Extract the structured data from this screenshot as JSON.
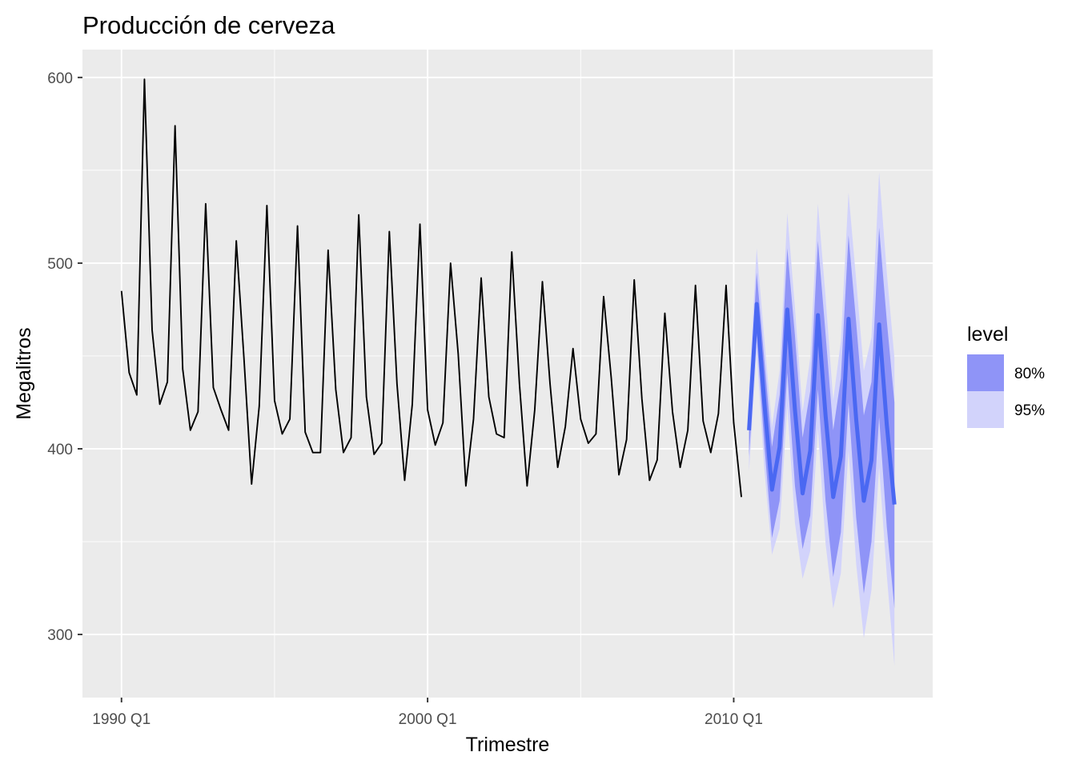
{
  "chart_data": {
    "type": "line",
    "title": "Producción de cerveza",
    "xlabel": "Trimestre",
    "ylabel": "Megalitros",
    "xlim": [
      1988.725,
      2016.5
    ],
    "ylim": [
      266,
      615
    ],
    "grid": true,
    "x_ticks": [
      {
        "value": 1990.0,
        "label": "1990 Q1"
      },
      {
        "value": 2000.0,
        "label": "2000 Q1"
      },
      {
        "value": 2010.0,
        "label": "2010 Q1"
      }
    ],
    "y_ticks": [
      {
        "value": 300,
        "label": "300"
      },
      {
        "value": 400,
        "label": "400"
      },
      {
        "value": 500,
        "label": "500"
      },
      {
        "value": 600,
        "label": "600"
      }
    ],
    "history": {
      "start": "1990 Q1",
      "end": "2010 Q2",
      "values": [
        485,
        441,
        429,
        599,
        464,
        424,
        436,
        574,
        443,
        410,
        420,
        532,
        433,
        421,
        410,
        512,
        449,
        381,
        423,
        531,
        426,
        408,
        416,
        520,
        409,
        398,
        398,
        507,
        432,
        398,
        406,
        526,
        428,
        397,
        403,
        517,
        435,
        383,
        424,
        521,
        421,
        402,
        414,
        500,
        451,
        380,
        416,
        492,
        428,
        408,
        406,
        506,
        435,
        380,
        421,
        490,
        435,
        390,
        412,
        454,
        416,
        403,
        408,
        482,
        438,
        386,
        405,
        491,
        427,
        383,
        394,
        473,
        420,
        390,
        410,
        488,
        415,
        398,
        419,
        488,
        414,
        374
      ]
    },
    "forecast": {
      "start": "2010 Q3",
      "end": "2015 Q2",
      "mean": [
        410,
        478,
        425,
        378,
        401,
        475,
        421,
        376,
        399,
        472,
        418,
        374,
        396,
        470,
        416,
        372,
        394,
        467,
        413,
        370
      ],
      "lo80": [
        396,
        461,
        402,
        352,
        372,
        441,
        380,
        346,
        364,
        432,
        372,
        331,
        355,
        425,
        363,
        322,
        350,
        417,
        358,
        314
      ],
      "hi80": [
        425,
        495,
        448,
        401,
        429,
        508,
        461,
        406,
        431,
        512,
        462,
        410,
        438,
        515,
        468,
        418,
        436,
        519,
        469,
        425
      ],
      "lo95": [
        388,
        452,
        389,
        343,
        357,
        423,
        360,
        330,
        345,
        411,
        349,
        314,
        333,
        399,
        338,
        298,
        324,
        390,
        332,
        283
      ],
      "hi95": [
        433,
        508,
        459,
        412,
        442,
        527,
        476,
        420,
        449,
        532,
        482,
        426,
        458,
        538,
        491,
        442,
        460,
        549,
        495,
        449
      ]
    },
    "legend": {
      "title": "level",
      "position": "right",
      "items": [
        {
          "label": "80%",
          "color": "#8f94f7"
        },
        {
          "label": "95%",
          "color": "#d2d3fb"
        }
      ]
    },
    "colors": {
      "panel": "#ebebeb",
      "grid": "#ffffff",
      "history_line": "#000000",
      "forecast_line": "#4a68f2",
      "band80": "#8f94f7",
      "band95": "#d2d3fb"
    }
  }
}
